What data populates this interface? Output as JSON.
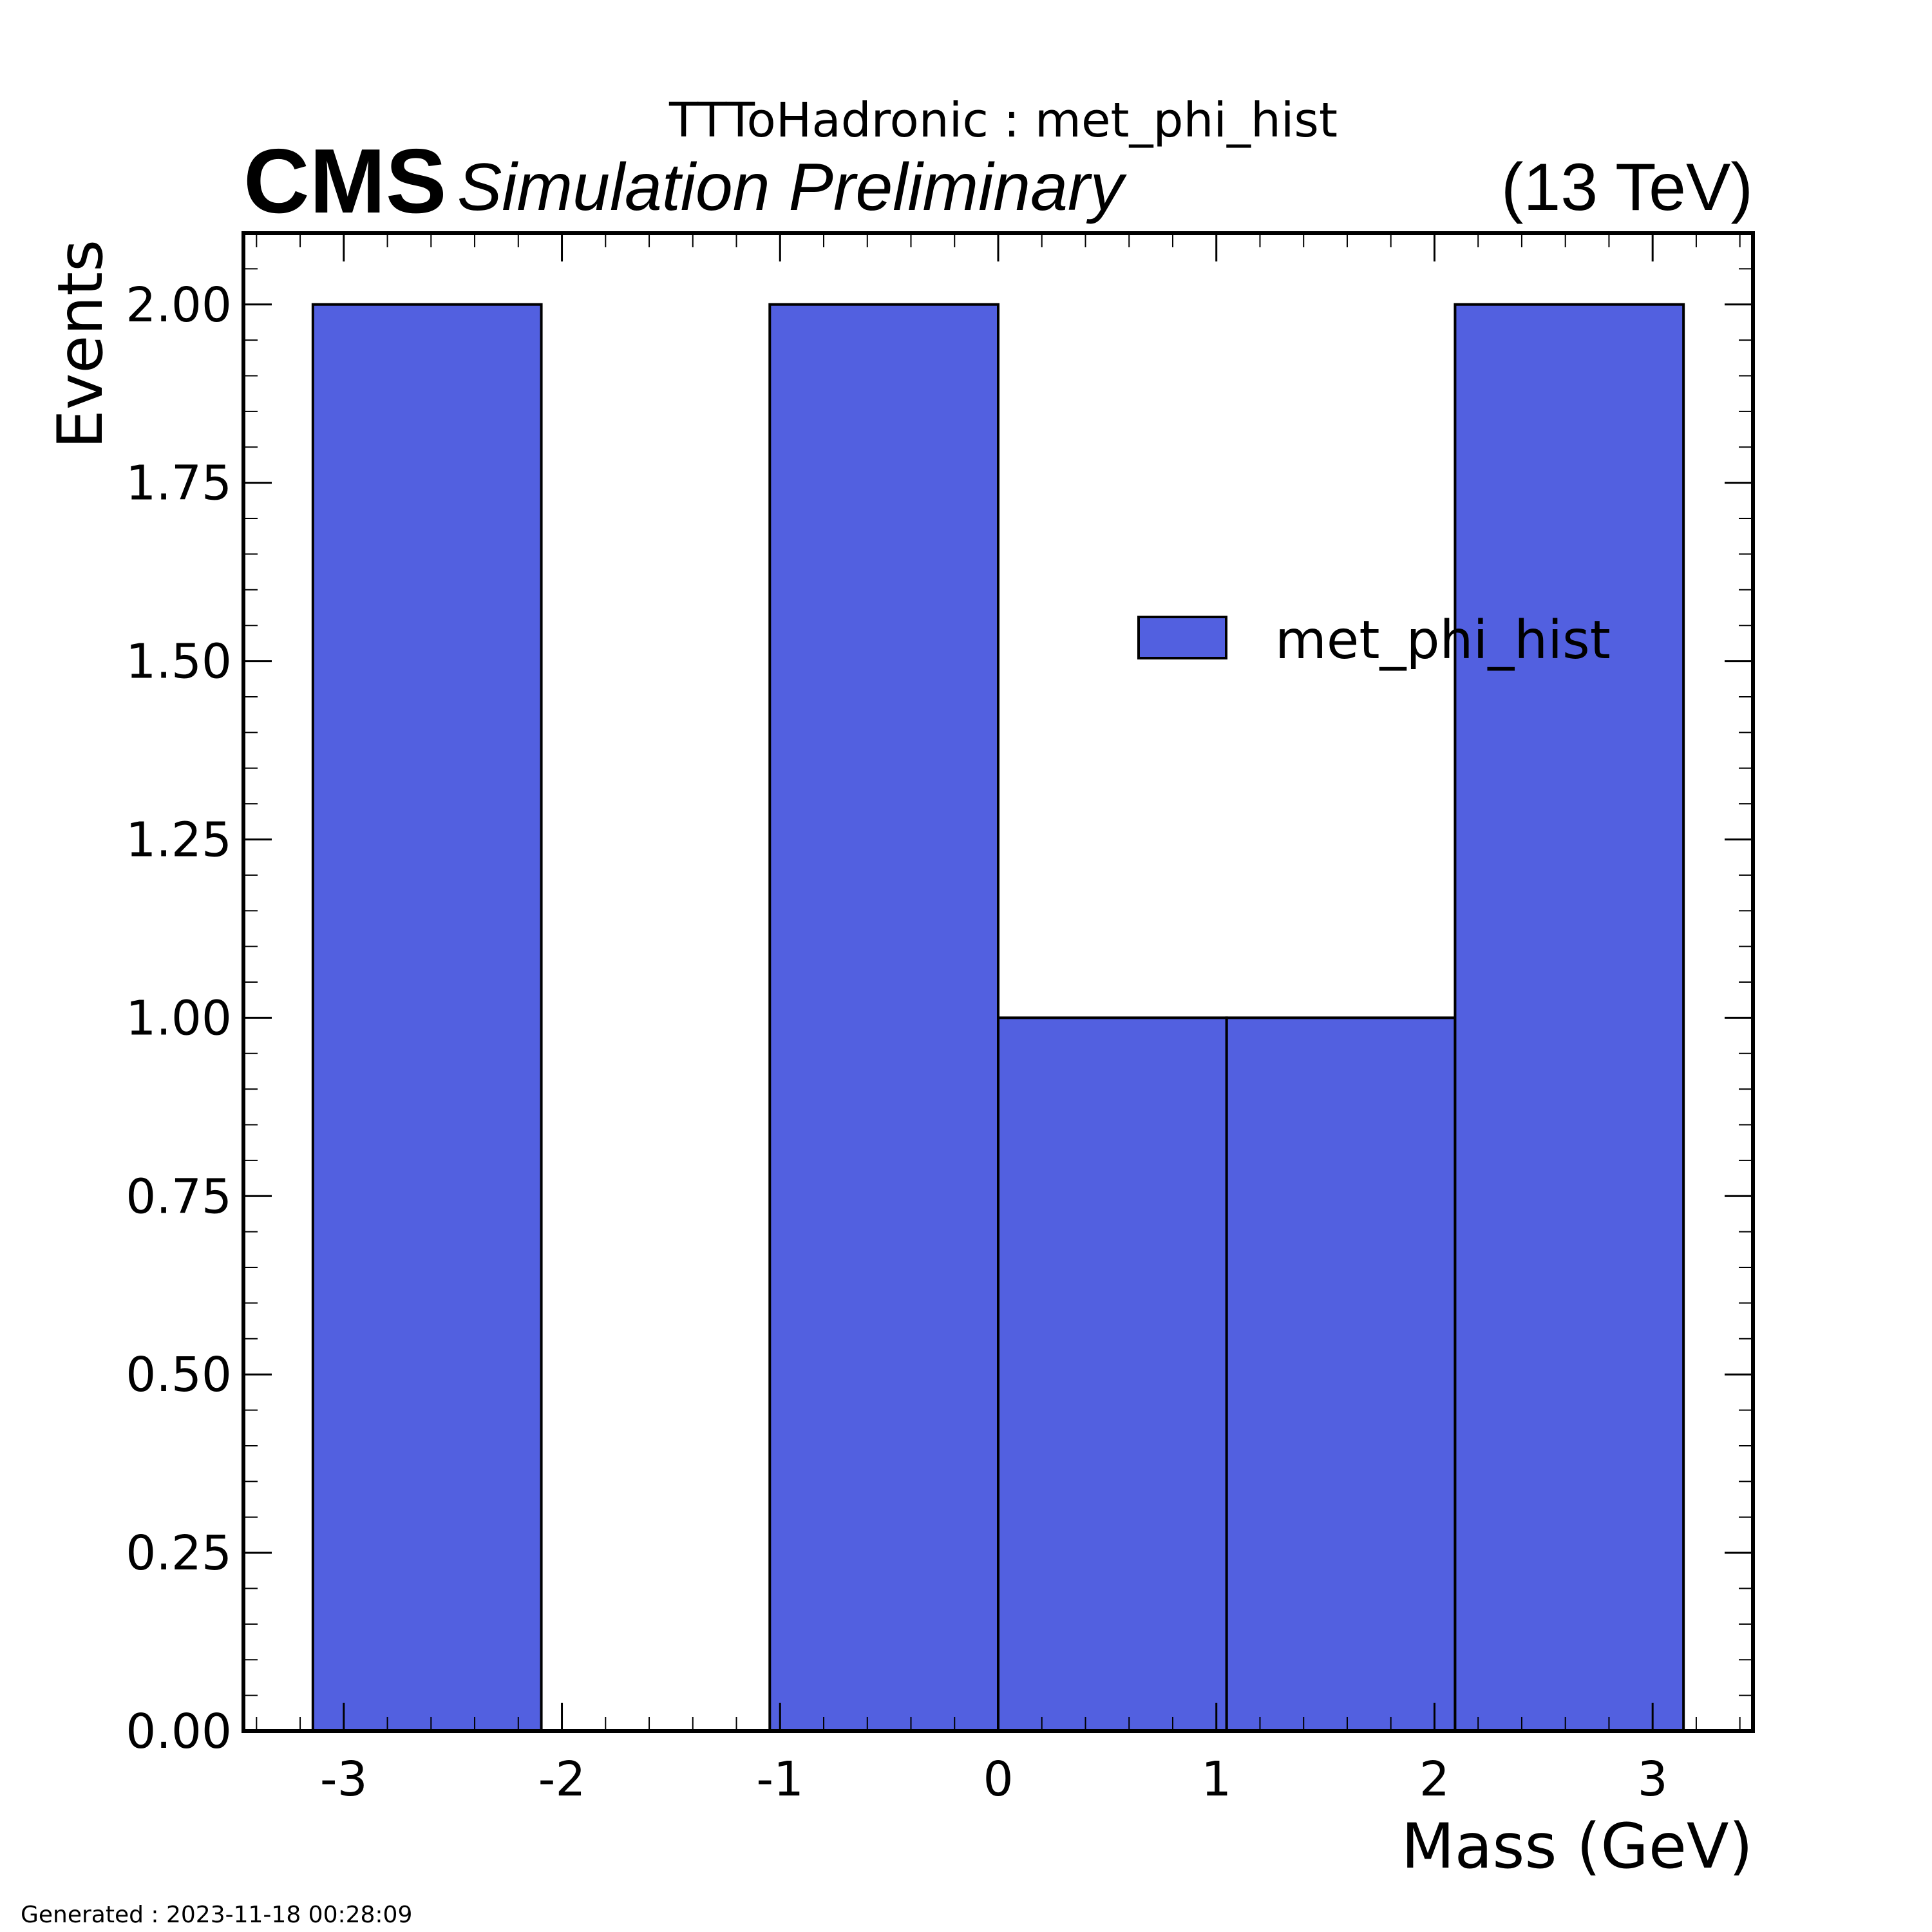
{
  "header": {
    "title": "TTToHadronic : met_phi_hist",
    "experiment": "CMS",
    "status": "Simulation Preliminary",
    "energy": "(13 TeV)"
  },
  "footer": {
    "generated": "Generated : 2023-11-18 00:28:09"
  },
  "colors": {
    "bar_fill": "#5260e0",
    "bar_edge": "#000000",
    "frame": "#000000"
  },
  "chart_data": {
    "type": "bar",
    "title": "TTToHadronic : met_phi_hist",
    "xlabel": "Mass (GeV)",
    "ylabel": "Events",
    "xlim": [
      -3.46,
      3.46
    ],
    "ylim": [
      0,
      2.1
    ],
    "bin_edges": [
      -3.1416,
      -2.0944,
      -1.0472,
      0.0,
      1.0472,
      2.0944,
      3.1416
    ],
    "values": [
      2,
      0,
      2,
      1,
      1,
      2
    ],
    "series": [
      {
        "name": "met_phi_hist",
        "values": [
          2,
          0,
          2,
          1,
          1,
          2
        ]
      }
    ],
    "xticks": [
      -3,
      -2,
      -1,
      0,
      1,
      2,
      3
    ],
    "xtick_labels": [
      "-3",
      "-2",
      "-1",
      "0",
      "1",
      "2",
      "3"
    ],
    "yticks": [
      0,
      0.25,
      0.5,
      0.75,
      1.0,
      1.25,
      1.5,
      1.75,
      2.0
    ],
    "ytick_labels": [
      "0.00",
      "0.25",
      "0.50",
      "0.75",
      "1.00",
      "1.25",
      "1.50",
      "1.75",
      "2.00"
    ],
    "x_minor_step": 0.2,
    "y_minor_step": 0.05,
    "legend": {
      "entries": [
        "met_phi_hist"
      ],
      "placement": "upper-right"
    },
    "grid": false
  }
}
